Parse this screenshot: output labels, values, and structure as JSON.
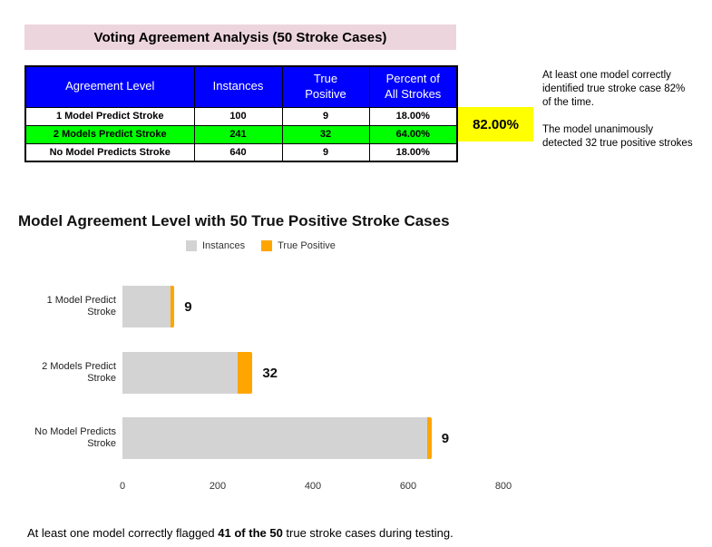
{
  "report": {
    "title": "Voting Agreement Analysis (50 Stroke Cases)"
  },
  "table": {
    "headers": [
      "Agreement Level",
      "Instances",
      "True\nPositive",
      "Percent of\nAll Strokes"
    ],
    "rows": [
      {
        "cells": [
          "1 Model Predict Stroke",
          "100",
          "9",
          "18.00%"
        ],
        "highlight": false
      },
      {
        "cells": [
          "2 Models Predict Stroke",
          "241",
          "32",
          "64.00%"
        ],
        "highlight": true
      },
      {
        "cells": [
          "No Model Predicts Stroke",
          "640",
          "9",
          "18.00%"
        ],
        "highlight": false
      }
    ]
  },
  "highlight_box": {
    "value": "82.00%",
    "background": "#ffff00"
  },
  "annotation": {
    "text": "At least one model correctly\nidentified true stroke case 82%\nof the time.\n\nThe model unanimously\ndetected 32 true positive strokes"
  },
  "chart_data": {
    "type": "bar",
    "orientation": "horizontal",
    "stacked": true,
    "title": "Model Agreement Level with 50 True Positive Stroke Cases",
    "categories": [
      "1 Model Predict Stroke",
      "2 Models Predict Stroke",
      "No Model Predicts Stroke"
    ],
    "series": [
      {
        "name": "Instances",
        "color": "#d3d3d3",
        "values": [
          100,
          241,
          640
        ]
      },
      {
        "name": "True Positive",
        "color": "#ffa500",
        "values": [
          9,
          32,
          9
        ]
      }
    ],
    "bar_labels": [
      "9",
      "32",
      "9"
    ],
    "xlim": [
      0,
      800
    ],
    "x_ticks": [
      0,
      200,
      400,
      600,
      800
    ],
    "legend_position": "top-center",
    "grid": false
  },
  "footer": {
    "prefix": "At least one model correctly flagged ",
    "bold": "41 of the 50",
    "suffix": " true stroke cases during testing."
  },
  "colors": {
    "title_bg": "#edd5dd",
    "table_header_bg": "#0000ff",
    "table_header_text": "#ffffff",
    "highlight_row_bg": "#00ff00",
    "highlight_box_bg": "#ffff00",
    "bar_instances": "#d3d3d3",
    "bar_true_positive": "#ffa500"
  }
}
